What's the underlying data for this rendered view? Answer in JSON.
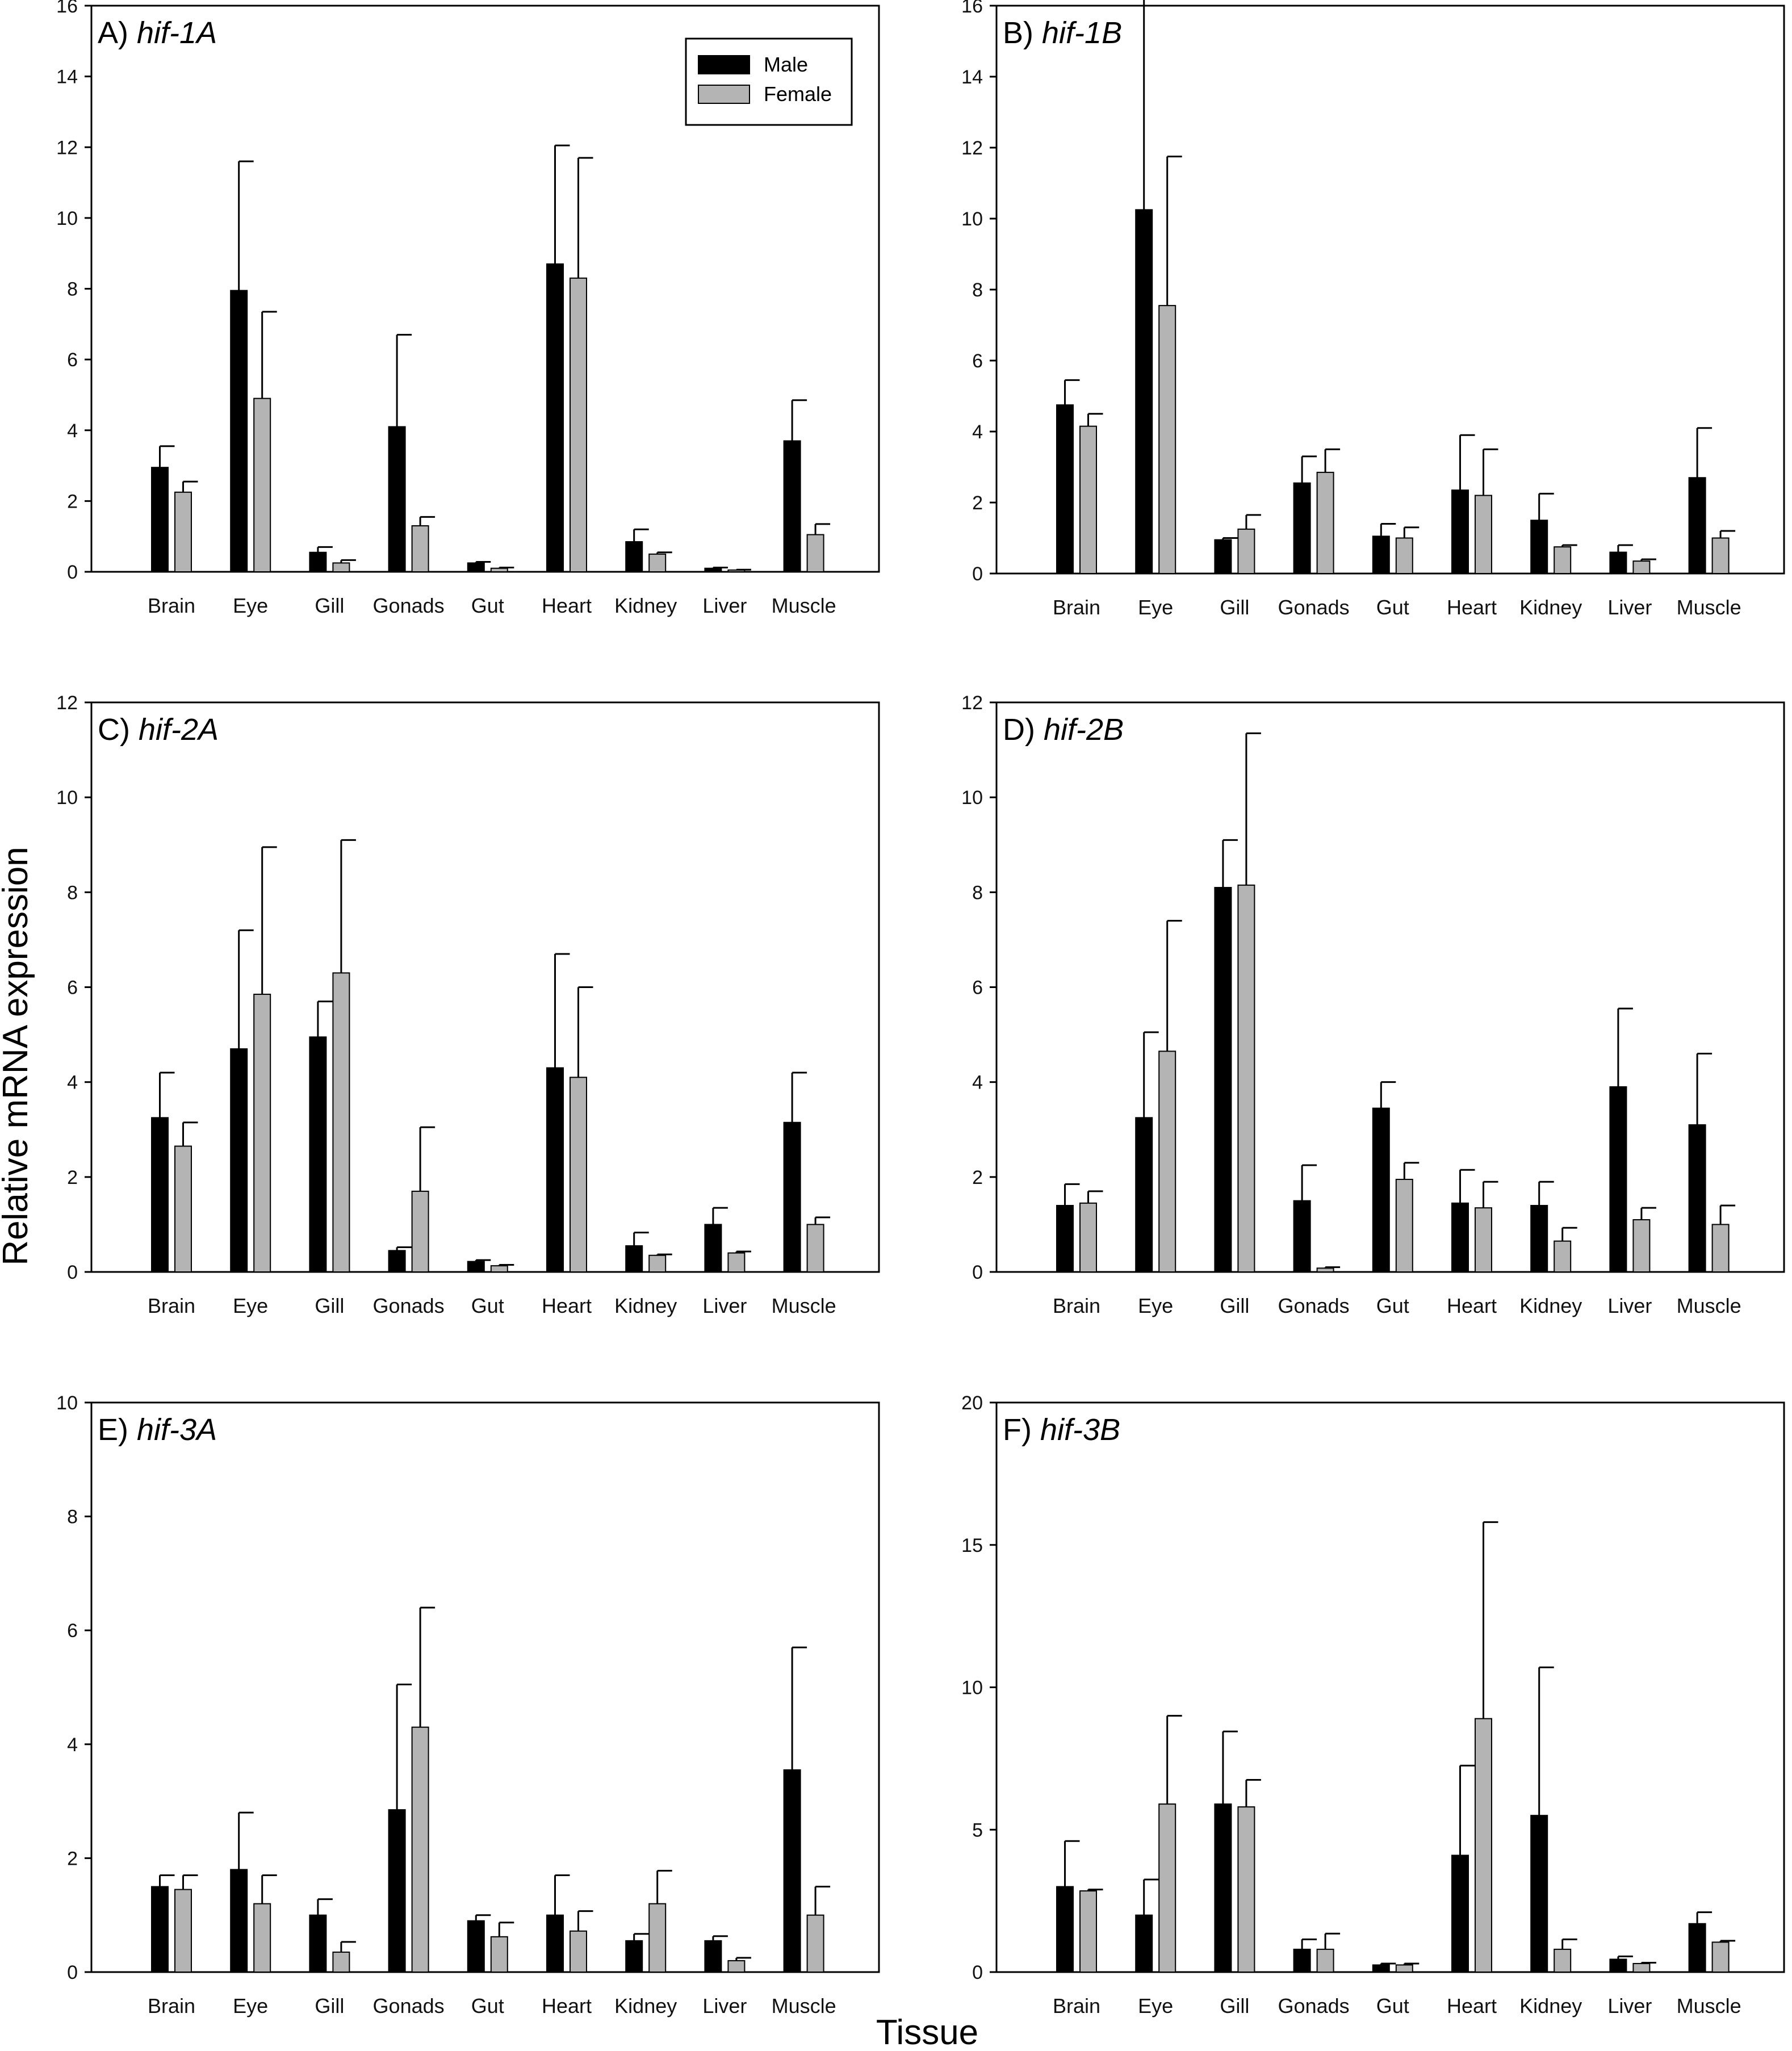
{
  "figure": {
    "ylabel": "Relative mRNA expression",
    "xlabel": "Tissue"
  },
  "legend": {
    "placement": "top-right of panel A",
    "entries": [
      {
        "label": "Male",
        "color": "#000000"
      },
      {
        "label": "Female",
        "color": "#b4b4b4"
      }
    ]
  },
  "colors": {
    "male": "#000000",
    "female": "#b4b4b4"
  },
  "chart_data": [
    {
      "type": "bar",
      "panel": "A)",
      "gene": "hif-1A",
      "categories": [
        "Brain",
        "Eye",
        "Gill",
        "Gonads",
        "Gut",
        "Heart",
        "Kidney",
        "Liver",
        "Muscle"
      ],
      "ylim": [
        0,
        16
      ],
      "yticks": [
        0,
        2,
        4,
        6,
        8,
        10,
        12,
        14,
        16
      ],
      "series": [
        {
          "name": "Male",
          "values": [
            2.95,
            7.95,
            0.55,
            4.1,
            0.25,
            8.7,
            0.85,
            0.1,
            3.7
          ],
          "errors": [
            0.6,
            3.65,
            0.15,
            2.6,
            0.03,
            3.35,
            0.35,
            0.02,
            1.15
          ]
        },
        {
          "name": "Female",
          "values": [
            2.25,
            4.9,
            0.25,
            1.3,
            0.1,
            8.3,
            0.5,
            0.05,
            1.05
          ],
          "errors": [
            0.3,
            2.45,
            0.08,
            0.25,
            0.02,
            3.4,
            0.05,
            0.01,
            0.3
          ]
        }
      ]
    },
    {
      "type": "bar",
      "panel": "B)",
      "gene": "hif-1B",
      "categories": [
        "Brain",
        "Eye",
        "Gill",
        "Gonads",
        "Gut",
        "Heart",
        "Kidney",
        "Liver",
        "Muscle"
      ],
      "ylim": [
        0,
        16
      ],
      "yticks": [
        0,
        2,
        4,
        6,
        8,
        10,
        12,
        14,
        16
      ],
      "series": [
        {
          "name": "Male",
          "values": [
            4.75,
            10.25,
            0.95,
            2.55,
            1.05,
            2.35,
            1.5,
            0.6,
            2.7
          ],
          "errors": [
            0.7,
            6.2,
            0.05,
            0.75,
            0.35,
            1.55,
            0.75,
            0.2,
            1.4
          ]
        },
        {
          "name": "Female",
          "values": [
            4.15,
            7.55,
            1.25,
            2.85,
            1.0,
            2.2,
            0.75,
            0.35,
            1.0
          ],
          "errors": [
            0.35,
            4.2,
            0.4,
            0.65,
            0.3,
            1.3,
            0.05,
            0.05,
            0.2
          ]
        }
      ]
    },
    {
      "type": "bar",
      "panel": "C)",
      "gene": "hif-2A",
      "categories": [
        "Brain",
        "Eye",
        "Gill",
        "Gonads",
        "Gut",
        "Heart",
        "Kidney",
        "Liver",
        "Muscle"
      ],
      "ylim": [
        0,
        12
      ],
      "yticks": [
        0,
        2,
        4,
        6,
        8,
        10,
        12
      ],
      "series": [
        {
          "name": "Male",
          "values": [
            3.25,
            4.7,
            4.95,
            0.45,
            0.22,
            4.3,
            0.55,
            1.0,
            3.15
          ],
          "errors": [
            0.95,
            2.5,
            0.75,
            0.07,
            0.03,
            2.4,
            0.28,
            0.35,
            1.05
          ]
        },
        {
          "name": "Female",
          "values": [
            2.65,
            5.85,
            6.3,
            1.7,
            0.13,
            4.1,
            0.35,
            0.4,
            1.0
          ],
          "errors": [
            0.5,
            3.1,
            2.8,
            1.35,
            0.02,
            1.9,
            0.02,
            0.03,
            0.15
          ]
        }
      ]
    },
    {
      "type": "bar",
      "panel": "D)",
      "gene": "hif-2B",
      "categories": [
        "Brain",
        "Eye",
        "Gill",
        "Gonads",
        "Gut",
        "Heart",
        "Kidney",
        "Liver",
        "Muscle"
      ],
      "ylim": [
        0,
        12
      ],
      "yticks": [
        0,
        2,
        4,
        6,
        8,
        10,
        12
      ],
      "series": [
        {
          "name": "Male",
          "values": [
            1.4,
            3.25,
            8.1,
            1.5,
            3.45,
            1.45,
            1.4,
            3.9,
            3.1
          ],
          "errors": [
            0.45,
            1.8,
            1.0,
            0.75,
            0.55,
            0.7,
            0.5,
            1.65,
            1.5
          ]
        },
        {
          "name": "Female",
          "values": [
            1.45,
            4.65,
            8.15,
            0.08,
            1.95,
            1.35,
            0.65,
            1.1,
            1.0
          ],
          "errors": [
            0.25,
            2.75,
            3.2,
            0.02,
            0.35,
            0.55,
            0.28,
            0.25,
            0.4
          ]
        }
      ]
    },
    {
      "type": "bar",
      "panel": "E)",
      "gene": "hif-3A",
      "categories": [
        "Brain",
        "Eye",
        "Gill",
        "Gonads",
        "Gut",
        "Heart",
        "Kidney",
        "Liver",
        "Muscle"
      ],
      "ylim": [
        0,
        10
      ],
      "yticks": [
        0,
        2,
        4,
        6,
        8,
        10
      ],
      "series": [
        {
          "name": "Male",
          "values": [
            1.5,
            1.8,
            1.0,
            2.85,
            0.9,
            1.0,
            0.55,
            0.55,
            3.55
          ],
          "errors": [
            0.2,
            1.0,
            0.28,
            2.2,
            0.1,
            0.7,
            0.12,
            0.08,
            2.15
          ]
        },
        {
          "name": "Female",
          "values": [
            1.45,
            1.2,
            0.35,
            4.3,
            0.62,
            0.72,
            1.2,
            0.2,
            1.0
          ],
          "errors": [
            0.25,
            0.5,
            0.18,
            2.1,
            0.25,
            0.35,
            0.58,
            0.05,
            0.5
          ]
        }
      ]
    },
    {
      "type": "bar",
      "panel": "F)",
      "gene": "hif-3B",
      "categories": [
        "Brain",
        "Eye",
        "Gill",
        "Gonads",
        "Gut",
        "Heart",
        "Kidney",
        "Liver",
        "Muscle"
      ],
      "ylim": [
        0,
        20
      ],
      "yticks": [
        0,
        5,
        10,
        15,
        20
      ],
      "series": [
        {
          "name": "Male",
          "values": [
            3.0,
            2.0,
            5.9,
            0.8,
            0.25,
            4.1,
            5.5,
            0.45,
            1.7
          ],
          "errors": [
            1.6,
            1.25,
            2.55,
            0.35,
            0.05,
            3.15,
            5.2,
            0.1,
            0.4
          ]
        },
        {
          "name": "Female",
          "values": [
            2.85,
            5.9,
            5.8,
            0.8,
            0.25,
            8.9,
            0.8,
            0.3,
            1.05
          ],
          "errors": [
            0.05,
            3.1,
            0.95,
            0.55,
            0.05,
            6.9,
            0.35,
            0.03,
            0.05
          ]
        }
      ]
    }
  ]
}
